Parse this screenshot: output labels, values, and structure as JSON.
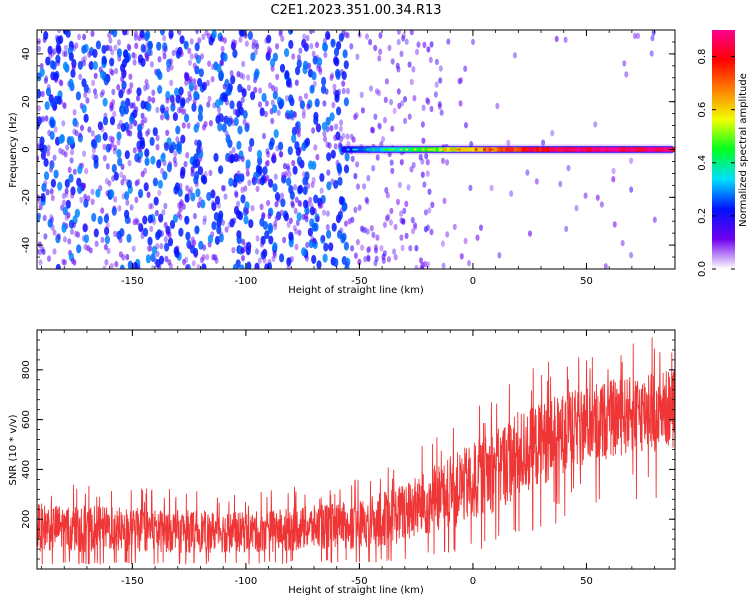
{
  "figure": {
    "title": "C2E1.2023.351.00.34.R13"
  },
  "chart_data": [
    {
      "type": "heatmap",
      "xlabel": "Height of straight line (km)",
      "ylabel": "Frequency (Hz)",
      "xlim": [
        -192,
        89
      ],
      "ylim": [
        -50,
        50
      ],
      "xticks": [
        -150,
        -100,
        -50,
        0,
        50
      ],
      "yticks": [
        -40,
        -20,
        0,
        20,
        40
      ],
      "colormap": [
        "#ffffff",
        "#7000f0",
        "#0010ff",
        "#00e0ff",
        "#00ff20",
        "#f0ff00",
        "#ff8000",
        "#ff0000",
        "#ff0090"
      ],
      "colorbar": {
        "label": "Normalized spectral amplitude",
        "range": [
          0,
          0.9
        ],
        "ticks": [
          0.0,
          0.2,
          0.4,
          0.6,
          0.8
        ]
      },
      "features": {
        "noise_region_x": [
          -192,
          -55
        ],
        "noise_amplitude": 0.15,
        "transition_region_x": [
          -55,
          10
        ],
        "signal_line_frequency": 0,
        "signal_line_x_start": -58,
        "signal_line_x_end": 89,
        "signal_amplitude_start": 0.2,
        "signal_amplitude_end": 0.85
      },
      "grid": false
    },
    {
      "type": "line",
      "xlabel": "Height of straight line (km)",
      "ylabel": "SNR (10 * v/v)",
      "xlim": [
        -192,
        89
      ],
      "ylim": [
        0,
        960
      ],
      "xticks": [
        -150,
        -100,
        -50,
        0,
        50
      ],
      "yticks": [
        200,
        400,
        600,
        800
      ],
      "series": [
        {
          "color": "#ef3535",
          "x": [
            -192,
            -150,
            -100,
            -50,
            -30,
            0,
            20,
            40,
            60,
            89
          ],
          "y_low": [
            30,
            30,
            30,
            40,
            50,
            120,
            200,
            320,
            380,
            420
          ],
          "y_high": [
            290,
            270,
            250,
            300,
            380,
            550,
            680,
            750,
            800,
            850
          ]
        }
      ],
      "grid": false
    }
  ]
}
